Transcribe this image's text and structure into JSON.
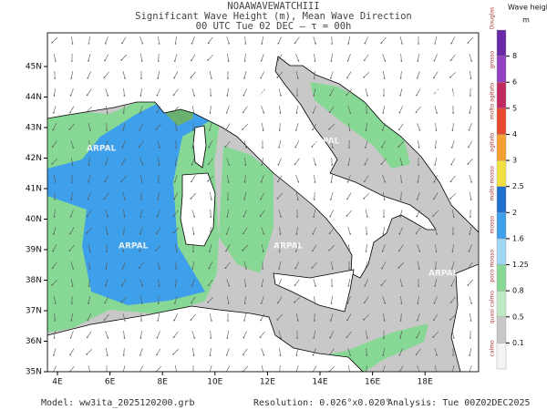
{
  "header": {
    "model": "NOAAWAVEWATCHIII",
    "variables": "Significant Wave Height (m), Mean Wave Direction",
    "time": "00 UTC Tue 02 DEC  —  τ = 00h"
  },
  "map": {
    "lat_labels": [
      "35N",
      "36N",
      "37N",
      "38N",
      "39N",
      "40N",
      "41N",
      "42N",
      "43N",
      "44N",
      "45N"
    ],
    "lon_labels": [
      "4E",
      "6E",
      "8E",
      "10E",
      "12E",
      "14E",
      "16E",
      "18E"
    ],
    "watermark": "ARPAL"
  },
  "colorbar": {
    "title": "Wave height",
    "unit": "m",
    "scale_title": "Douglas",
    "ticks": [
      0.1,
      0.5,
      0.8,
      1.25,
      1.6,
      2,
      2.5,
      3,
      4,
      5,
      6,
      8
    ],
    "colors": [
      "#f4f4f4",
      "#c8c8c8",
      "#bfe8c4",
      "#86d894",
      "#9fd6f4",
      "#3ea0ea",
      "#1f6fd0",
      "#f2e040",
      "#f5a030",
      "#e84830",
      "#c02860",
      "#9040c0",
      "#6a2aa8"
    ],
    "classes": [
      "calmo",
      "quasi calmo",
      "poco mosso",
      "mosso",
      "molto mosso",
      "agitato",
      "molto agitato",
      "grosso"
    ]
  },
  "footer": {
    "model": "Model: ww3ita_2025120200.grb",
    "resolution": "Resolution: 0.026°x0.020°",
    "analysis": "Analysis: Tue 00Z02DEC2025"
  }
}
